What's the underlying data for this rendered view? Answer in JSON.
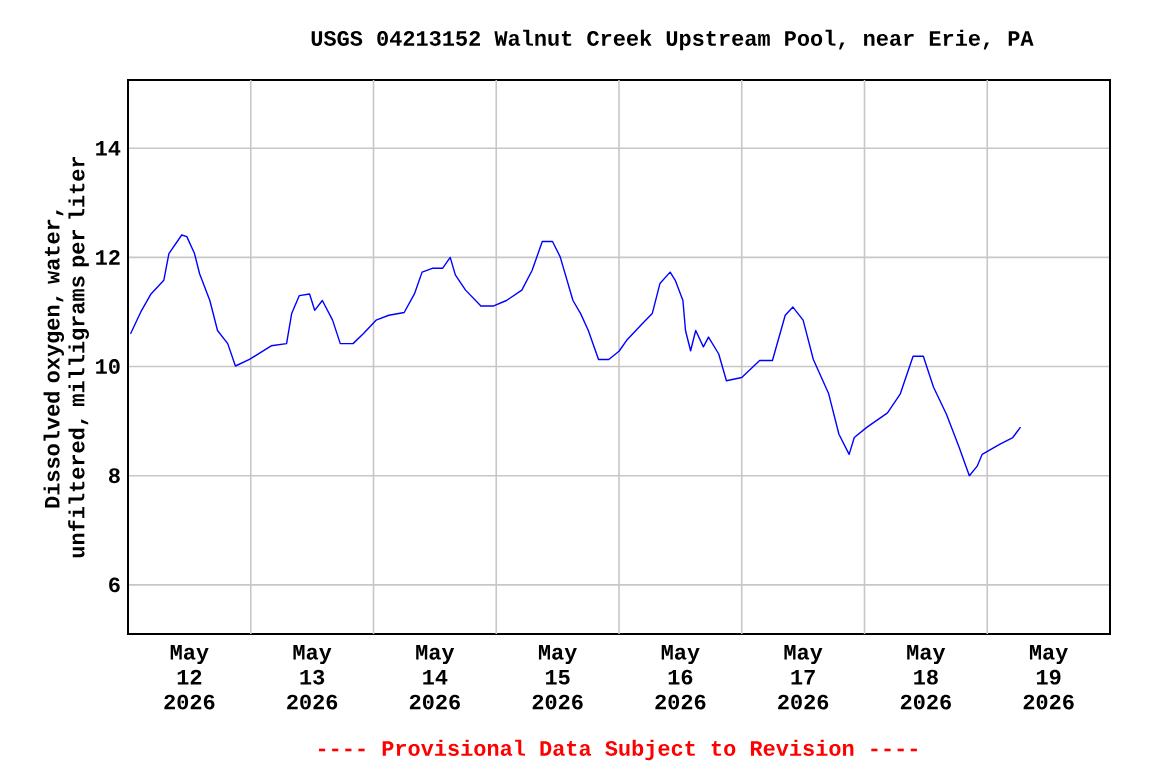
{
  "chart_data": {
    "type": "line",
    "title": "USGS 04213152 Walnut Creek Upstream Pool, near Erie, PA",
    "ylabel": "Dissolved oxygen, water, unfiltered, milligrams per liter",
    "annotations": [
      "---- Provisional Data Subject to Revision ----"
    ],
    "color": "#0000ff",
    "x": [
      "2026-05-12T00:30",
      "2026-05-12T02:30",
      "2026-05-12T04:30",
      "2026-05-12T07:00",
      "2026-05-12T08:00",
      "2026-05-12T10:30",
      "2026-05-12T11:30",
      "2026-05-12T13:00",
      "2026-05-12T14:00",
      "2026-05-12T16:00",
      "2026-05-12T17:30",
      "2026-05-12T19:30",
      "2026-05-12T21:00",
      "2026-05-12T23:45",
      "2026-05-13T04:00",
      "2026-05-13T07:00",
      "2026-05-13T08:00",
      "2026-05-13T09:30",
      "2026-05-13T11:30",
      "2026-05-13T12:30",
      "2026-05-13T14:00",
      "2026-05-13T16:00",
      "2026-05-13T17:30",
      "2026-05-13T20:00",
      "2026-05-13T22:00",
      "2026-05-14T00:30",
      "2026-05-14T03:00",
      "2026-05-14T06:00",
      "2026-05-14T08:00",
      "2026-05-14T09:30",
      "2026-05-14T11:30",
      "2026-05-14T13:30",
      "2026-05-14T15:00",
      "2026-05-14T16:00",
      "2026-05-14T18:00",
      "2026-05-14T21:00",
      "2026-05-14T23:30",
      "2026-05-15T02:00",
      "2026-05-15T05:00",
      "2026-05-15T07:00",
      "2026-05-15T09:00",
      "2026-05-15T11:00",
      "2026-05-15T12:30",
      "2026-05-15T15:00",
      "2026-05-15T16:30",
      "2026-05-15T18:00",
      "2026-05-15T20:00",
      "2026-05-15T22:00",
      "2026-05-16T00:00",
      "2026-05-16T01:30",
      "2026-05-16T04:30",
      "2026-05-16T06:30",
      "2026-05-16T08:00",
      "2026-05-16T10:00",
      "2026-05-16T11:00",
      "2026-05-16T12:30",
      "2026-05-16T13:00",
      "2026-05-16T14:00",
      "2026-05-16T15:00",
      "2026-05-16T16:30",
      "2026-05-16T17:30",
      "2026-05-16T19:30",
      "2026-05-16T21:00",
      "2026-05-17T00:00",
      "2026-05-17T03:30",
      "2026-05-17T06:00",
      "2026-05-17T08:30",
      "2026-05-17T10:00",
      "2026-05-17T12:00",
      "2026-05-17T14:00",
      "2026-05-17T17:00",
      "2026-05-17T19:00",
      "2026-05-17T21:00",
      "2026-05-17T22:00",
      "2026-05-18T00:30",
      "2026-05-18T04:30",
      "2026-05-18T07:00",
      "2026-05-18T09:30",
      "2026-05-18T11:30",
      "2026-05-18T13:30",
      "2026-05-18T16:00",
      "2026-05-18T18:30",
      "2026-05-18T20:30",
      "2026-05-18T22:00",
      "2026-05-18T23:00",
      "2026-05-19T02:30",
      "2026-05-19T05:00",
      "2026-05-19T06:30"
    ],
    "values": [
      10.6,
      11.0,
      11.33,
      11.58,
      12.07,
      12.41,
      12.38,
      12.07,
      11.7,
      11.21,
      10.66,
      10.42,
      10.01,
      10.13,
      10.38,
      10.42,
      10.97,
      11.3,
      11.33,
      11.03,
      11.21,
      10.85,
      10.42,
      10.42,
      10.6,
      10.85,
      10.94,
      10.99,
      11.33,
      11.73,
      11.8,
      11.8,
      12.0,
      11.68,
      11.4,
      11.11,
      11.11,
      11.21,
      11.4,
      11.76,
      12.29,
      12.29,
      12.01,
      11.21,
      10.97,
      10.66,
      10.13,
      10.13,
      10.28,
      10.48,
      10.78,
      10.97,
      11.52,
      11.73,
      11.58,
      11.21,
      10.66,
      10.29,
      10.66,
      10.36,
      10.54,
      10.23,
      9.74,
      9.8,
      10.11,
      10.11,
      10.94,
      11.09,
      10.85,
      10.13,
      9.5,
      8.76,
      8.39,
      8.7,
      8.89,
      9.15,
      9.5,
      10.19,
      10.19,
      9.62,
      9.13,
      8.52,
      8.0,
      8.17,
      8.39,
      8.58,
      8.7,
      8.89
    ],
    "xlim": [
      "2026-05-12T00:00",
      "2026-05-20T00:00"
    ],
    "ylim": [
      5.1,
      15.25
    ],
    "xticks": [
      {
        "value": "2026-05-12T12:00",
        "label": "May 12 2026"
      },
      {
        "value": "2026-05-13T12:00",
        "label": "May 13 2026"
      },
      {
        "value": "2026-05-14T12:00",
        "label": "May 14 2026"
      },
      {
        "value": "2026-05-15T12:00",
        "label": "May 15 2026"
      },
      {
        "value": "2026-05-16T12:00",
        "label": "May 16 2026"
      },
      {
        "value": "2026-05-17T12:00",
        "label": "May 17 2026"
      },
      {
        "value": "2026-05-18T12:00",
        "label": "May 18 2026"
      },
      {
        "value": "2026-05-19T12:00",
        "label": "May 19 2026"
      },
      {
        "value": "2026-05-13T00:00",
        "label": null
      },
      {
        "value": "2026-05-14T00:00",
        "label": null
      },
      {
        "value": "2026-05-15T00:00",
        "label": null
      },
      {
        "value": "2026-05-16T00:00",
        "label": null
      },
      {
        "value": "2026-05-17T00:00",
        "label": null
      },
      {
        "value": "2026-05-18T00:00",
        "label": null
      },
      {
        "value": "2026-05-19T00:00",
        "label": null
      }
    ],
    "yticks": [
      6,
      8,
      10,
      12,
      14
    ],
    "grid": true
  }
}
